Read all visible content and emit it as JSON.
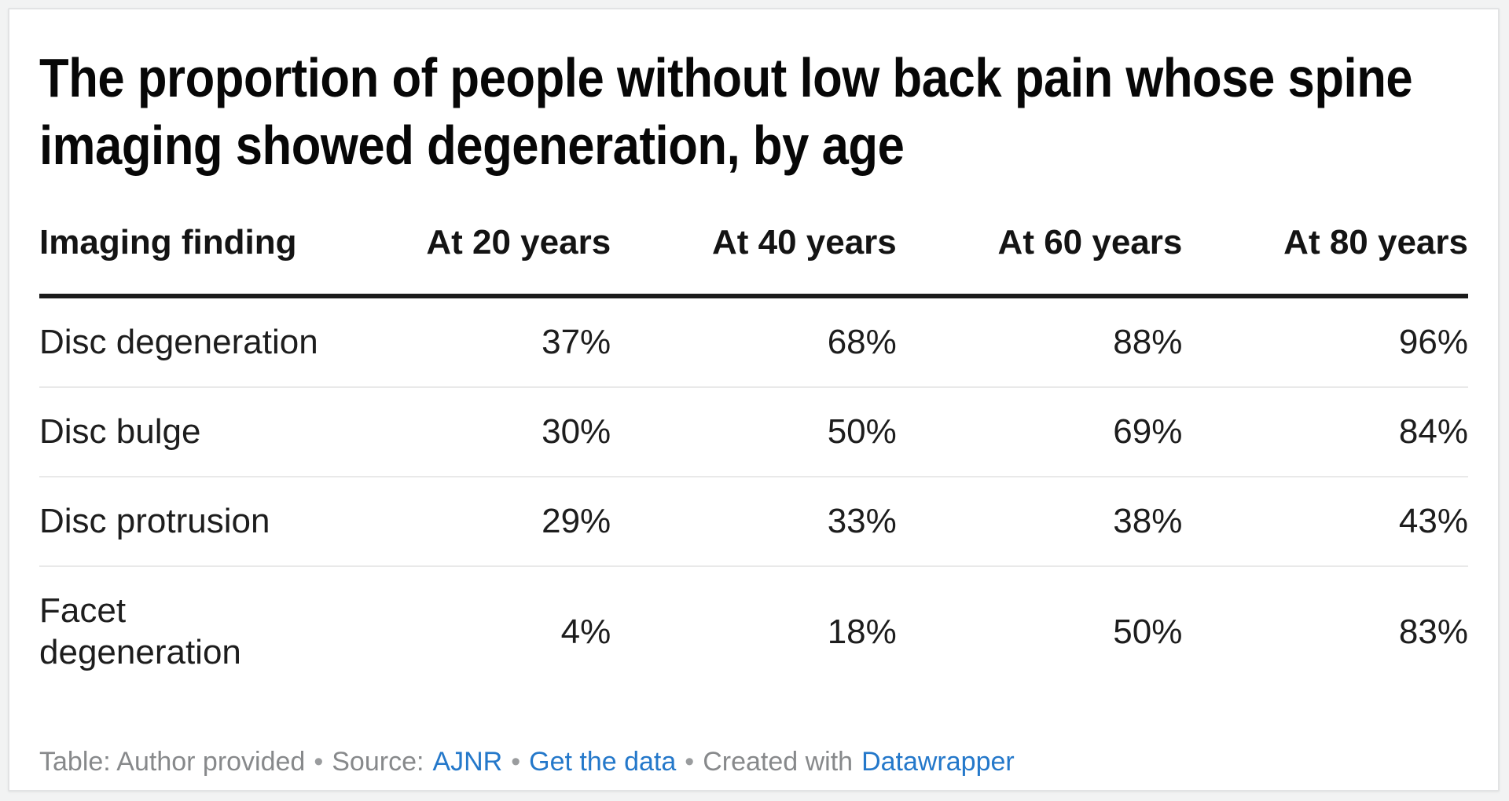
{
  "card": {
    "title_lines": [
      "The proportion of people without low back pain whose spine",
      "imaging showed degeneration, by age"
    ],
    "table": {
      "columns": [
        "Imaging finding",
        "At 20 years",
        "At 40 years",
        "At 60 years",
        "At 80 years"
      ],
      "rows": [
        {
          "finding": "Disc degeneration",
          "values": [
            "37%",
            "68%",
            "88%",
            "96%"
          ]
        },
        {
          "finding": "Disc bulge",
          "values": [
            "30%",
            "50%",
            "69%",
            "84%"
          ]
        },
        {
          "finding": "Disc protrusion",
          "values": [
            "29%",
            "33%",
            "38%",
            "43%"
          ]
        },
        {
          "finding": "Facet\ndegeneration",
          "values": [
            "4%",
            "18%",
            "50%",
            "83%"
          ]
        }
      ]
    },
    "footer": {
      "table_credit": "Table: Author provided",
      "separator": "•",
      "source_label": "Source:",
      "source_link": "AJNR",
      "get_data_link": "Get the data",
      "created_label": "Created with",
      "created_link": "Datawrapper"
    },
    "colors": {
      "link_blue": "#2478ca",
      "footer_gray": "#87898b",
      "header_rule": "#1b1b1b",
      "row_divider": "#e9e9e9",
      "card_background": "#ffffff",
      "page_background": "#f2f3f3"
    }
  },
  "chart_data": {
    "type": "table",
    "title": "The proportion of people without low back pain whose spine imaging showed degeneration, by age",
    "categories": [
      "At 20 years",
      "At 40 years",
      "At 60 years",
      "At 80 years"
    ],
    "series": [
      {
        "name": "Disc degeneration",
        "values": [
          37,
          68,
          88,
          96
        ]
      },
      {
        "name": "Disc bulge",
        "values": [
          30,
          50,
          69,
          84
        ]
      },
      {
        "name": "Disc protrusion",
        "values": [
          29,
          33,
          38,
          43
        ]
      },
      {
        "name": "Facet degeneration",
        "values": [
          4,
          18,
          50,
          83
        ]
      }
    ],
    "unit": "%",
    "row_header_label": "Imaging finding",
    "source": "AJNR",
    "credit": "Table: Author provided",
    "tool": "Datawrapper"
  }
}
